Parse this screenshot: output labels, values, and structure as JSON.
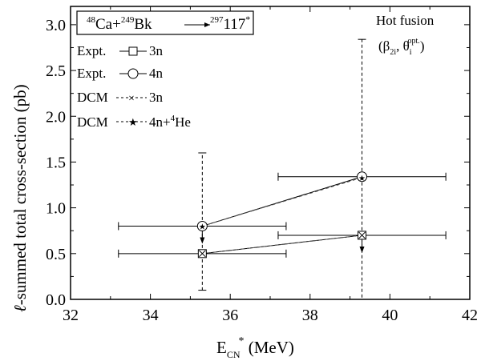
{
  "chart_data": {
    "type": "scatter",
    "reaction": {
      "projectile_mass": "48",
      "projectile": "Ca+",
      "target_mass": "249",
      "target": "Bk",
      "cn_mass": "297",
      "cn": "117",
      "cn_star": "*"
    },
    "annotation": {
      "line1": "Hot fusion",
      "beta": "(β",
      "beta_sub": "2i",
      "comma": ", θ",
      "theta_sub": "i",
      "theta_sup": "opt.",
      "close": ")"
    },
    "xlabel": {
      "main": "E",
      "sub": "CN",
      "sup": "*",
      "unit": " (MeV)"
    },
    "ylabel": {
      "ell": "ℓ",
      "rest": "-summed total cross-section (pb)"
    },
    "xlim": [
      32,
      42
    ],
    "ylim": [
      0.0,
      3.2
    ],
    "xticks": [
      32,
      34,
      36,
      38,
      40,
      42
    ],
    "yticks": [
      0.0,
      0.5,
      1.0,
      1.5,
      2.0,
      2.5,
      3.0
    ],
    "ytick_labels": [
      "0.0",
      "0.5",
      "1.0",
      "1.5",
      "2.0",
      "2.5",
      "3.0"
    ],
    "grid": false,
    "legend_position": "top-left",
    "series": [
      {
        "name": "Expt. — 3n",
        "label_text": "Expt.",
        "suffix": "3n",
        "marker": "square",
        "line": "solid",
        "x": [
          35.3,
          39.3
        ],
        "y": [
          0.5,
          0.7
        ],
        "xerr": [
          [
            2.1,
            2.1
          ],
          [
            2.1,
            2.1
          ]
        ],
        "yerr_upper": [
          1.1,
          0
        ],
        "yerr_lower": [
          0.4,
          0
        ]
      },
      {
        "name": "Expt. — 4n",
        "label_text": "Expt.",
        "suffix": "4n",
        "marker": "circle",
        "line": "solid",
        "x": [
          35.3,
          39.3
        ],
        "y": [
          0.8,
          1.34
        ],
        "xerr": [
          [
            2.1,
            2.1
          ],
          [
            2.1,
            2.1
          ]
        ],
        "yerr_upper": [
          0,
          1.5
        ],
        "yerr_lower": [
          0,
          1.34
        ]
      },
      {
        "name": "DCM — 3n",
        "label_text": "DCM",
        "suffix": "3n",
        "marker": "x",
        "line": "dashed",
        "x": [
          35.3,
          39.3
        ],
        "y": [
          0.5,
          0.7
        ]
      },
      {
        "name": "DCM — 4n+4He",
        "label_text": "DCM",
        "suffix": "4n+",
        "suffix_sup": "4",
        "suffix_tail": "He",
        "marker": "star",
        "line": "dashed",
        "x": [
          35.3,
          39.3
        ],
        "y": [
          0.8,
          1.33
        ]
      }
    ],
    "arrows": [
      {
        "x": 35.3,
        "y": 0.8,
        "direction": "down"
      },
      {
        "x": 39.3,
        "y": 0.7,
        "direction": "down"
      }
    ]
  }
}
